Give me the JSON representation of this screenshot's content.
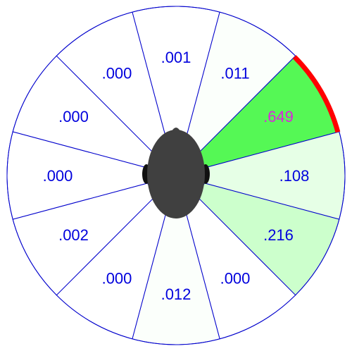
{
  "chart_data": {
    "type": "polar-sector",
    "sector_count": 12,
    "sectors": [
      {
        "label": ".001",
        "value": 0.001,
        "fill": "#ffffff",
        "text_color": "#0000dd"
      },
      {
        "label": ".011",
        "value": 0.011,
        "fill": "#fbfffb",
        "text_color": "#0000dd"
      },
      {
        "label": ".649",
        "value": 0.649,
        "fill": "#55f855",
        "text_color": "#dd22dd",
        "highlight": true
      },
      {
        "label": ".108",
        "value": 0.108,
        "fill": "#e6ffe6",
        "text_color": "#0000dd"
      },
      {
        "label": ".216",
        "value": 0.216,
        "fill": "#ccffcc",
        "text_color": "#0000dd"
      },
      {
        "label": ".000",
        "value": 0.0,
        "fill": "#ffffff",
        "text_color": "#0000dd"
      },
      {
        "label": ".012",
        "value": 0.012,
        "fill": "#fbfffb",
        "text_color": "#0000dd"
      },
      {
        "label": ".000",
        "value": 0.0,
        "fill": "#ffffff",
        "text_color": "#0000dd"
      },
      {
        "label": ".002",
        "value": 0.002,
        "fill": "#ffffff",
        "text_color": "#0000dd"
      },
      {
        "label": ".000",
        "value": 0.0,
        "fill": "#ffffff",
        "text_color": "#0000dd"
      },
      {
        "label": ".000",
        "value": 0.0,
        "fill": "#ffffff",
        "text_color": "#0000dd"
      },
      {
        "label": ".000",
        "value": 0.0,
        "fill": "#ffffff",
        "text_color": "#0000dd"
      }
    ],
    "divider_color": "#0000cc",
    "highlight_arc_color": "#ff0000",
    "head_color": "#404040",
    "head_icon": "head-top-view-icon"
  }
}
